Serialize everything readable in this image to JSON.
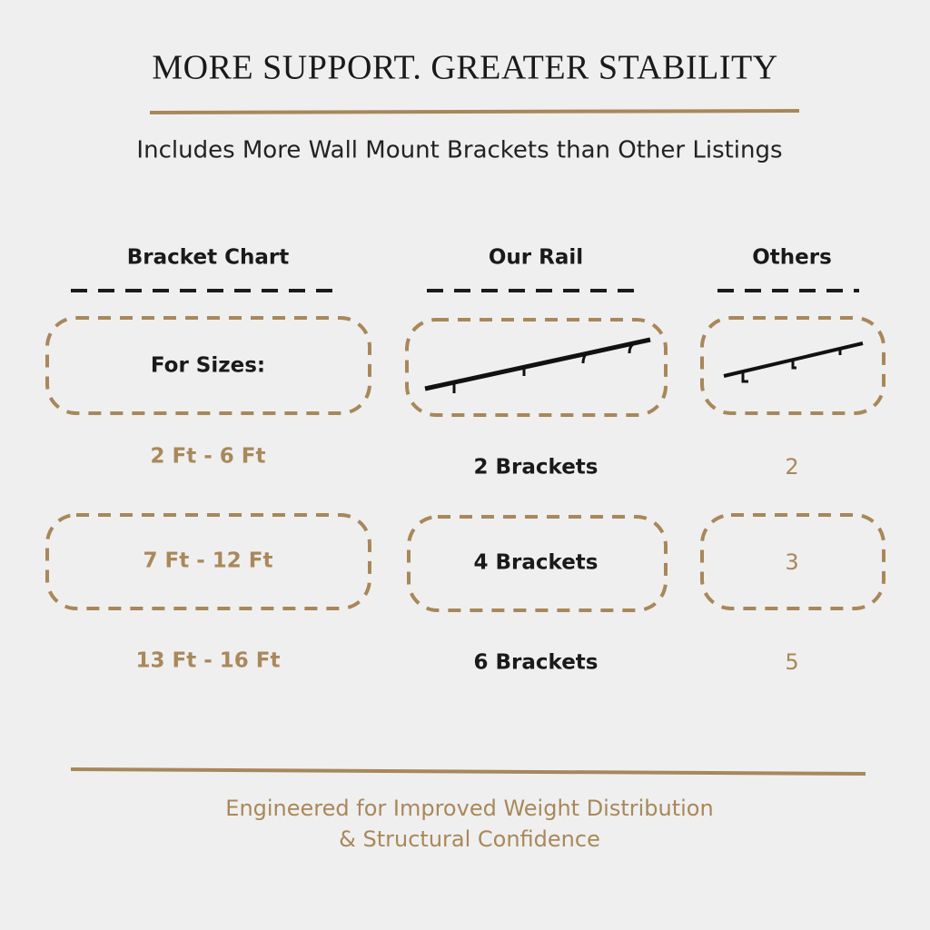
{
  "header": {
    "title": "MORE SUPPORT. GREATER STABILITY",
    "subtitle": "Includes More Wall Mount Brackets than Other Listings"
  },
  "table": {
    "headers": [
      "Bracket Chart",
      "Our Rail",
      "Others"
    ],
    "label": "For Sizes:",
    "rows": [
      [
        "2 Ft - 6 Ft",
        "2 Brackets",
        2
      ],
      [
        "7 Ft - 12 Ft",
        "4 Brackets",
        3
      ],
      [
        "13 Ft - 16 Ft",
        "6 Brackets",
        5
      ]
    ]
  },
  "footer": [
    "Engineered for Improved Weight Distribution",
    "& Structural Confidence"
  ]
}
